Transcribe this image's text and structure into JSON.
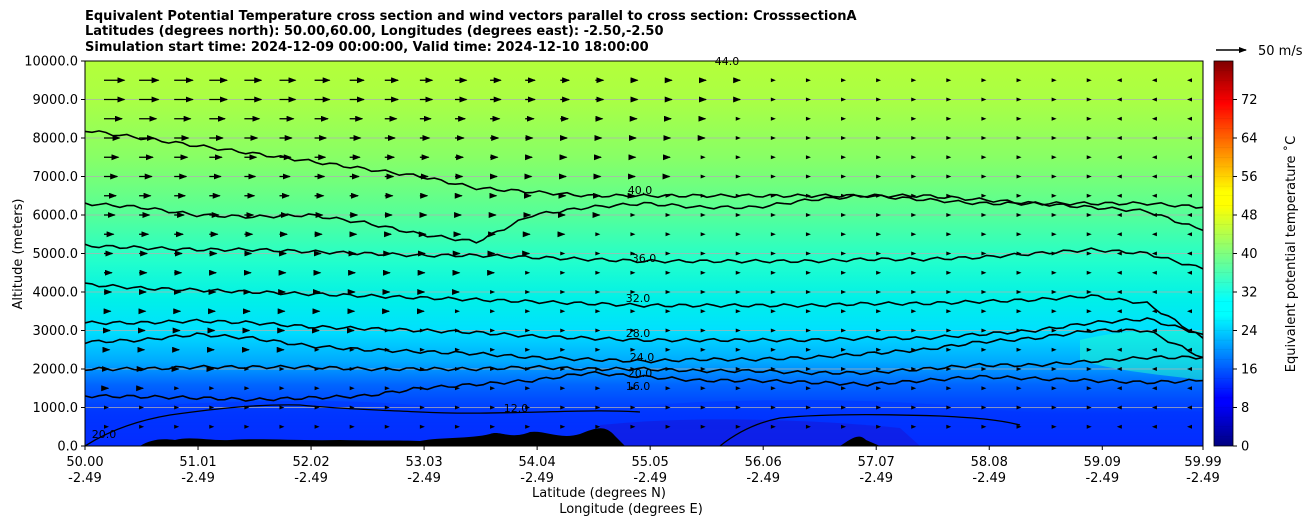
{
  "title_lines": [
    "Equivalent Potential Temperature cross section and wind vectors parallel to cross section: CrosssectionA",
    "Latitudes (degrees north): 50.00,60.00, Longitudes (degrees east): -2.50,-2.50",
    "Simulation start time: 2024-12-09 00:00:00, Valid time: 2024-12-10 18:00:00"
  ],
  "chart_data": {
    "type": "heatmap",
    "subtype": "filled-contour cross section with wind vectors",
    "ylabel": "Altitude (meters)",
    "xlabel_lines": [
      "Latitude (degrees N)",
      "Longitude (degrees E)"
    ],
    "x_tick_labels": [
      {
        "lat": "50.00",
        "lon": "-2.49"
      },
      {
        "lat": "51.01",
        "lon": "-2.49"
      },
      {
        "lat": "52.02",
        "lon": "-2.49"
      },
      {
        "lat": "53.03",
        "lon": "-2.49"
      },
      {
        "lat": "54.04",
        "lon": "-2.49"
      },
      {
        "lat": "55.05",
        "lon": "-2.49"
      },
      {
        "lat": "56.06",
        "lon": "-2.49"
      },
      {
        "lat": "57.07",
        "lon": "-2.49"
      },
      {
        "lat": "58.08",
        "lon": "-2.49"
      },
      {
        "lat": "59.09",
        "lon": "-2.49"
      },
      {
        "lat": "59.99",
        "lon": "-2.49"
      }
    ],
    "xlim": [
      50.0,
      59.99
    ],
    "ylim": [
      0,
      10000
    ],
    "y_ticks": [
      0,
      1000,
      2000,
      3000,
      4000,
      5000,
      6000,
      7000,
      8000,
      9000,
      10000
    ],
    "y_tick_labels": [
      "0.0",
      "1000.0",
      "2000.0",
      "3000.0",
      "4000.0",
      "5000.0",
      "6000.0",
      "7000.0",
      "8000.0",
      "9000.0",
      "10000.0"
    ],
    "horizontal_grid": true,
    "colorbar": {
      "label": "Equivalent potential temperature ˚C",
      "min": 0,
      "max": 80,
      "step": 2,
      "tick_values": [
        0,
        8,
        16,
        24,
        32,
        40,
        48,
        56,
        64,
        72
      ],
      "tick_labels": [
        "0",
        "8",
        "16",
        "24",
        "32",
        "40",
        "48",
        "56",
        "64",
        "72"
      ],
      "colormap": "jet"
    },
    "contour_lines": [
      {
        "level": 16,
        "label": "16.0",
        "altitude_m": [
          1300,
          1280,
          1250,
          1200,
          1250,
          1300,
          1500,
          1600,
          1700,
          1900,
          1800,
          1700,
          1700,
          1650,
          1600,
          1700,
          1800,
          1750,
          1700,
          1650,
          1700
        ]
      },
      {
        "level": 20,
        "label": "20.0",
        "altitude_m": [
          2000,
          2000,
          2050,
          2050,
          2050,
          2000,
          2000,
          2000,
          2050,
          2000,
          2000,
          1950,
          1950,
          1900,
          1900,
          2000,
          2100,
          2100,
          2200,
          2300,
          2300
        ]
      },
      {
        "level": 24,
        "label": "24.0",
        "altitude_m": [
          2700,
          2750,
          2900,
          2800,
          2600,
          2500,
          2450,
          2400,
          2300,
          2250,
          2200,
          2250,
          2250,
          2300,
          2400,
          2500,
          2700,
          2800,
          3000,
          3000,
          2300
        ]
      },
      {
        "level": 28,
        "label": "28.0",
        "altitude_m": [
          3200,
          3200,
          3250,
          3200,
          3100,
          3050,
          3000,
          2950,
          2850,
          2800,
          2750,
          2750,
          2750,
          2750,
          2800,
          2800,
          2900,
          3000,
          3200,
          3300,
          2900
        ]
      },
      {
        "level": 32,
        "label": "32.0",
        "altitude_m": [
          4200,
          4100,
          4050,
          4000,
          3950,
          3900,
          3850,
          3800,
          3750,
          3700,
          3650,
          3650,
          3650,
          3650,
          3700,
          3700,
          3750,
          3800,
          3900,
          3700,
          2800
        ]
      },
      {
        "level": 36,
        "label": "36.0",
        "altitude_m": [
          5200,
          5150,
          5100,
          5100,
          5050,
          5000,
          4950,
          4950,
          4900,
          4850,
          4800,
          4800,
          4800,
          4800,
          4850,
          4850,
          4900,
          5000,
          5100,
          5000,
          4600
        ]
      },
      {
        "level": 40,
        "label": "40.0",
        "altitude_m": [
          6300,
          6200,
          6000,
          5950,
          6000,
          5800,
          5500,
          5300,
          6000,
          6200,
          6300,
          6200,
          6200,
          6400,
          6500,
          6400,
          6300,
          6300,
          6200,
          6100,
          5600
        ]
      },
      {
        "level": 44,
        "label": "44.0",
        "altitude_m": [
          8200,
          8000,
          7800,
          7600,
          7400,
          7200,
          7000,
          6700,
          6600,
          6500,
          6500,
          6500,
          6500,
          6500,
          6500,
          6500,
          6400,
          6300,
          6300,
          6300,
          6200
        ]
      }
    ],
    "inline_contour_labels": [
      "40.0",
      "44.0",
      "36.0",
      "32.0",
      "28.0",
      "24.0",
      "20.0",
      "16.0",
      "12.0",
      "20.0"
    ],
    "wind_reference": {
      "label": "50 m/s",
      "speed_ms": 50
    },
    "wind_profile": {
      "altitudes_m": [
        500,
        1000,
        1500,
        2000,
        2500,
        3000,
        3500,
        4000,
        4500,
        5000,
        5500,
        6000,
        6500,
        7000,
        7500,
        8000,
        8500,
        9000,
        9500
      ],
      "max_speed_ms": [
        4,
        6,
        7,
        8,
        9,
        10,
        11,
        12,
        13,
        14,
        16,
        18,
        20,
        22,
        24,
        26,
        30,
        34,
        34
      ]
    }
  }
}
